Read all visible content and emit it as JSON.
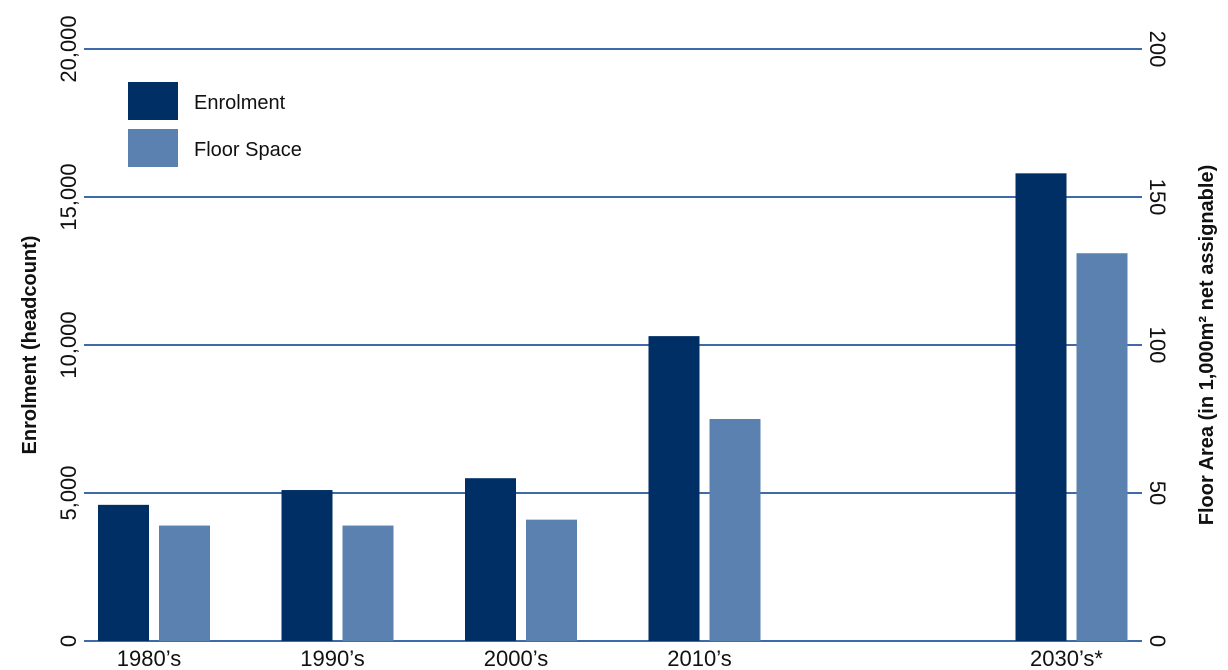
{
  "chart_data": {
    "type": "bar",
    "title": "",
    "categories": [
      "1980’s",
      "1990’s",
      "2000’s",
      "2010’s",
      "2030’s*"
    ],
    "category_positions": [
      0,
      1,
      2,
      3,
      5
    ],
    "series": [
      {
        "name": "Enrolment",
        "axis": "left",
        "color": "#002f66",
        "values": [
          4600,
          5100,
          5500,
          10300,
          15800
        ]
      },
      {
        "name": "Floor Space",
        "axis": "right",
        "color": "#5a81b0",
        "values": [
          39,
          39,
          41,
          75,
          131
        ]
      }
    ],
    "left_axis": {
      "label": "Enrolment (headcount)",
      "ylim": [
        0,
        20000
      ],
      "ticks": [
        0,
        5000,
        10000,
        15000,
        20000
      ],
      "tick_labels": [
        "0",
        "5,000",
        "10,000",
        "15,000",
        "20,000"
      ]
    },
    "right_axis": {
      "label": "Floor Area (in 1,000m² net assignable)",
      "ylim": [
        0,
        200
      ],
      "ticks": [
        0,
        50,
        100,
        150,
        200
      ],
      "tick_labels": [
        "0",
        "50",
        "100",
        "150",
        "200"
      ]
    },
    "grid": true,
    "grid_color": "#3e6ba8",
    "legend_position": "top-left"
  }
}
